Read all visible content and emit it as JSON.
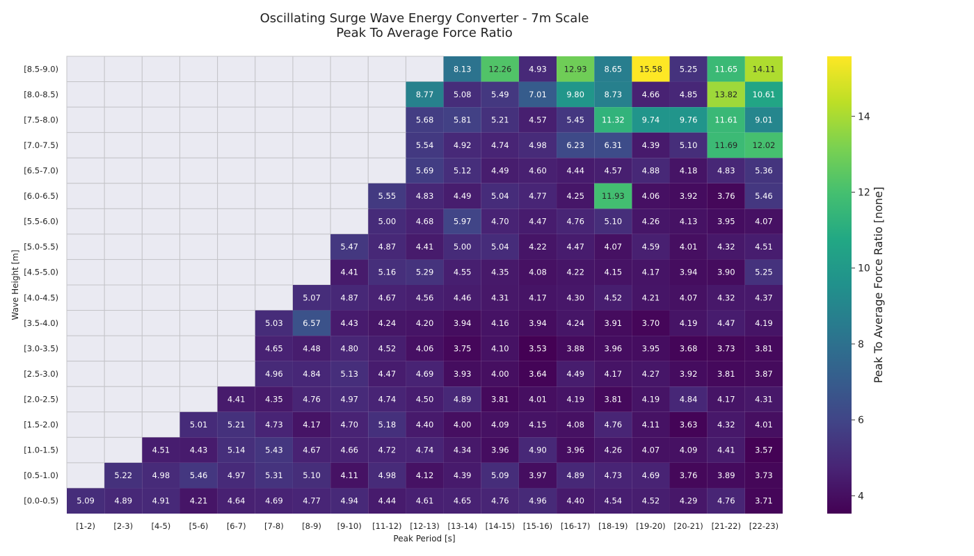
{
  "chart_data": {
    "type": "heatmap",
    "title": "Oscillating Surge Wave Energy Converter - 7m Scale",
    "subtitle": "Peak To Average Force Ratio",
    "xlabel": "Peak Period [s]",
    "ylabel": "Wave Height [m]",
    "colorbar_label": "Peak To Average Force Ratio [none]",
    "colormap": "viridis",
    "vmin": 3.53,
    "vmax": 15.58,
    "colorbar_ticks": [
      4,
      6,
      8,
      10,
      12,
      14
    ],
    "x_categories": [
      "[1-2)",
      "[2-3)",
      "[4-5)",
      "[5-6)",
      "[6-7)",
      "[7-8)",
      "[8-9)",
      "[9-10)",
      "[11-12)",
      "[12-13)",
      "[13-14)",
      "[14-15)",
      "[15-16)",
      "[16-17)",
      "[18-19)",
      "[19-20)",
      "[20-21)",
      "[21-22)",
      "[22-23)"
    ],
    "y_categories": [
      "[8.5-9.0)",
      "[8.0-8.5)",
      "[7.5-8.0)",
      "[7.0-7.5)",
      "[6.5-7.0)",
      "[6.0-6.5)",
      "[5.5-6.0)",
      "[5.0-5.5)",
      "[4.5-5.0)",
      "[4.0-4.5)",
      "[3.5-4.0)",
      "[3.0-3.5)",
      "[2.5-3.0)",
      "[2.0-2.5)",
      "[1.5-2.0)",
      "[1.0-1.5)",
      "[0.5-1.0)",
      "[0.0-0.5)"
    ],
    "values": [
      [
        null,
        null,
        null,
        null,
        null,
        null,
        null,
        null,
        null,
        null,
        8.13,
        12.26,
        4.93,
        12.93,
        8.65,
        15.58,
        5.25,
        11.65,
        14.11
      ],
      [
        null,
        null,
        null,
        null,
        null,
        null,
        null,
        null,
        null,
        8.77,
        5.08,
        5.49,
        7.01,
        9.8,
        8.73,
        4.66,
        4.85,
        13.82,
        10.61
      ],
      [
        null,
        null,
        null,
        null,
        null,
        null,
        null,
        null,
        null,
        5.68,
        5.81,
        5.21,
        4.57,
        5.45,
        11.32,
        9.74,
        9.76,
        11.61,
        9.01
      ],
      [
        null,
        null,
        null,
        null,
        null,
        null,
        null,
        null,
        null,
        5.54,
        4.92,
        4.74,
        4.98,
        6.23,
        6.31,
        4.39,
        5.1,
        11.69,
        12.02
      ],
      [
        null,
        null,
        null,
        null,
        null,
        null,
        null,
        null,
        null,
        5.69,
        5.12,
        4.49,
        4.6,
        4.44,
        4.57,
        4.88,
        4.18,
        4.83,
        5.36
      ],
      [
        null,
        null,
        null,
        null,
        null,
        null,
        null,
        null,
        5.55,
        4.83,
        4.49,
        5.04,
        4.77,
        4.25,
        11.93,
        4.06,
        3.92,
        3.76,
        5.46
      ],
      [
        null,
        null,
        null,
        null,
        null,
        null,
        null,
        null,
        5.0,
        4.68,
        5.97,
        4.7,
        4.47,
        4.76,
        5.1,
        4.26,
        4.13,
        3.95,
        4.07
      ],
      [
        null,
        null,
        null,
        null,
        null,
        null,
        null,
        5.47,
        4.87,
        4.41,
        5.0,
        5.04,
        4.22,
        4.47,
        4.07,
        4.59,
        4.01,
        4.32,
        4.51
      ],
      [
        null,
        null,
        null,
        null,
        null,
        null,
        null,
        4.41,
        5.16,
        5.29,
        4.55,
        4.35,
        4.08,
        4.22,
        4.15,
        4.17,
        3.94,
        3.9,
        5.25
      ],
      [
        null,
        null,
        null,
        null,
        null,
        null,
        5.07,
        4.87,
        4.67,
        4.56,
        4.46,
        4.31,
        4.17,
        4.3,
        4.52,
        4.21,
        4.07,
        4.32,
        4.37
      ],
      [
        null,
        null,
        null,
        null,
        null,
        5.03,
        6.57,
        4.43,
        4.24,
        4.2,
        3.94,
        4.16,
        3.94,
        4.24,
        3.91,
        3.7,
        4.19,
        4.47,
        4.19
      ],
      [
        null,
        null,
        null,
        null,
        null,
        4.65,
        4.48,
        4.8,
        4.52,
        4.06,
        3.75,
        4.1,
        3.53,
        3.88,
        3.96,
        3.95,
        3.68,
        3.73,
        3.81
      ],
      [
        null,
        null,
        null,
        null,
        null,
        4.96,
        4.84,
        5.13,
        4.47,
        4.69,
        3.93,
        4.0,
        3.64,
        4.49,
        4.17,
        4.27,
        3.92,
        3.81,
        3.87
      ],
      [
        null,
        null,
        null,
        null,
        4.41,
        4.35,
        4.76,
        4.97,
        4.74,
        4.5,
        4.89,
        3.81,
        4.01,
        4.19,
        3.81,
        4.19,
        4.84,
        4.17,
        4.31
      ],
      [
        null,
        null,
        null,
        5.01,
        5.21,
        4.73,
        4.17,
        4.7,
        5.18,
        4.4,
        4.0,
        4.09,
        4.15,
        4.08,
        4.76,
        4.11,
        3.63,
        4.32,
        4.01
      ],
      [
        null,
        null,
        4.51,
        4.43,
        5.14,
        5.43,
        4.67,
        4.66,
        4.72,
        4.74,
        4.34,
        3.96,
        4.9,
        3.96,
        4.26,
        4.07,
        4.09,
        4.41,
        3.57
      ],
      [
        null,
        5.22,
        4.98,
        5.46,
        4.97,
        5.31,
        5.1,
        4.11,
        4.98,
        4.12,
        4.39,
        5.09,
        3.97,
        4.89,
        4.73,
        4.69,
        3.76,
        3.89,
        3.73
      ],
      [
        5.09,
        4.89,
        4.91,
        4.21,
        4.64,
        4.69,
        4.77,
        4.94,
        4.44,
        4.61,
        4.65,
        4.76,
        4.96,
        4.4,
        4.54,
        4.52,
        4.29,
        4.76,
        3.71
      ]
    ],
    "grid": true,
    "legend": "colorbar-right"
  }
}
